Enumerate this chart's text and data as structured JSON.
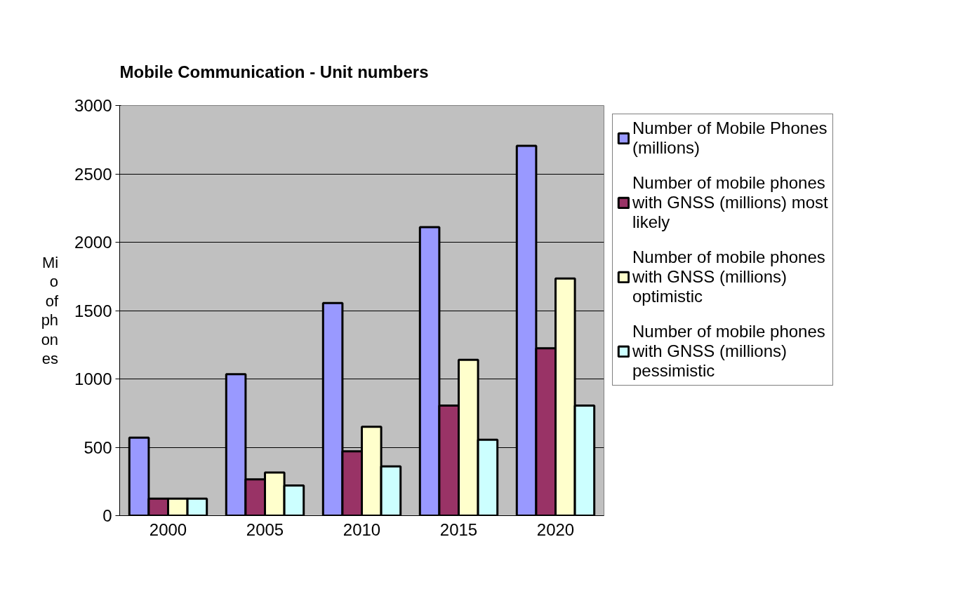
{
  "chart_data": {
    "type": "bar",
    "title": "Mobile Communication - Unit numbers",
    "ylabel": "Mio of phones",
    "categories": [
      "2000",
      "2005",
      "2010",
      "2015",
      "2020"
    ],
    "series": [
      {
        "name": "Number of Mobile Phones (millions)",
        "color": "#9999ff",
        "values": [
          570,
          1035,
          1555,
          2110,
          2705
        ]
      },
      {
        "name": "Number of mobile phones with GNSS (millions) most likely",
        "color": "#993366",
        "values": [
          125,
          265,
          470,
          805,
          1225
        ]
      },
      {
        "name": "Number of mobile phones with GNSS (millions) optimistic",
        "color": "#ffffcc",
        "values": [
          125,
          315,
          650,
          1140,
          1735
        ]
      },
      {
        "name": "Number of mobile phones with GNSS (millions) pessimistic",
        "color": "#ccffff",
        "values": [
          125,
          220,
          360,
          555,
          805
        ]
      }
    ],
    "ylim": [
      0,
      3000
    ],
    "yticks": [
      0,
      500,
      1000,
      1500,
      2000,
      2500,
      3000
    ],
    "grid": "y",
    "legend": "right"
  }
}
